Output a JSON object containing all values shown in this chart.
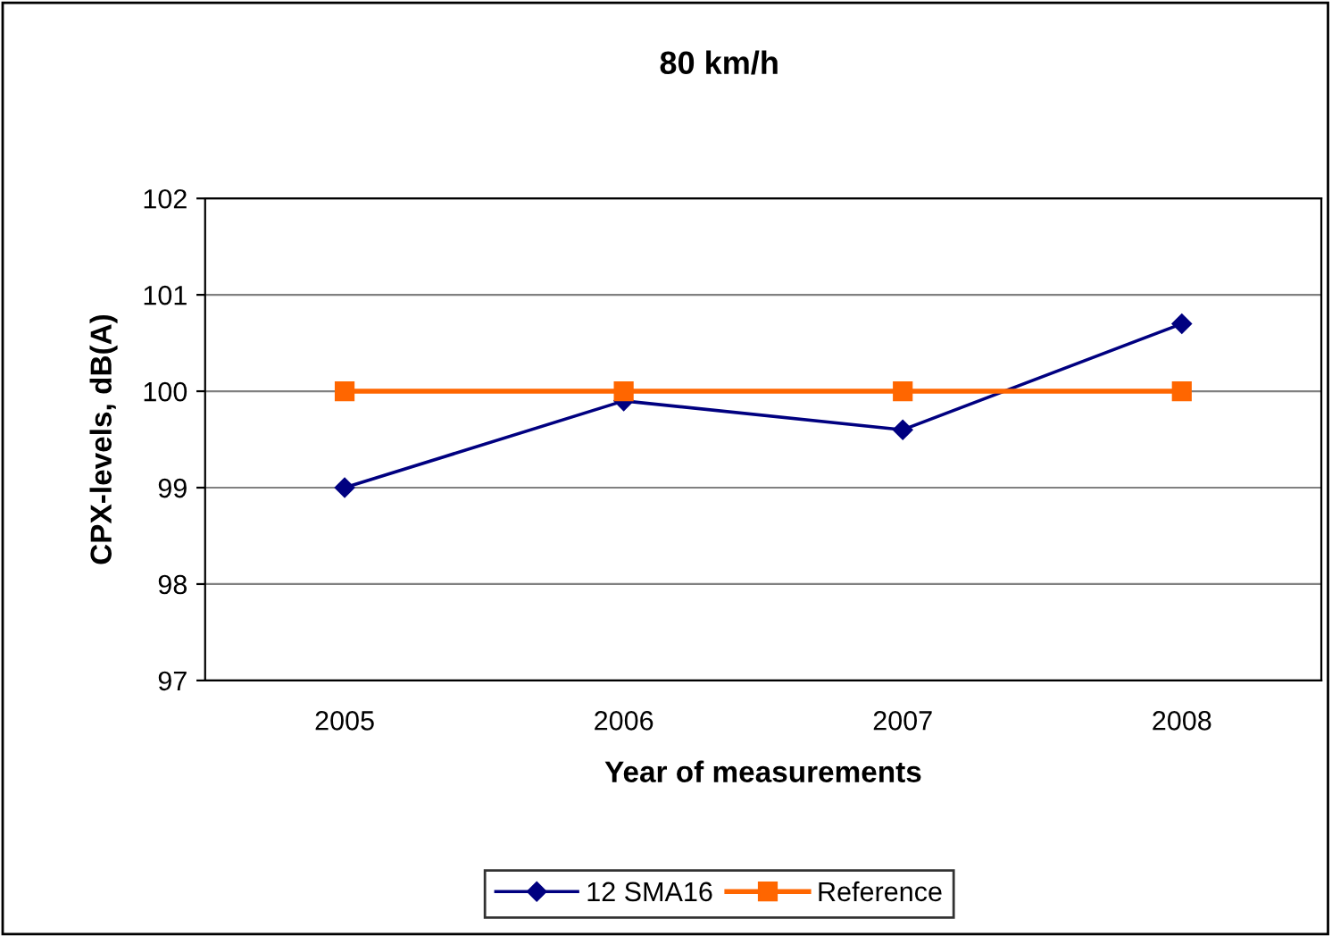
{
  "chart_data": {
    "type": "line",
    "title": "80 km/h",
    "xlabel": "Year of measurements",
    "ylabel": "CPX-levels, dB(A)",
    "categories": [
      "2005",
      "2006",
      "2007",
      "2008"
    ],
    "series": [
      {
        "name": "12 SMA16",
        "color": "#000080",
        "marker": "diamond",
        "values": [
          99.0,
          99.9,
          99.6,
          100.7
        ]
      },
      {
        "name": "Reference",
        "color": "#ff6600",
        "marker": "square",
        "values": [
          100,
          100,
          100,
          100
        ]
      }
    ],
    "ylim": [
      97,
      102
    ],
    "yticks": [
      97,
      98,
      99,
      100,
      101,
      102
    ],
    "grid": "y",
    "legend": "bottom",
    "line_style": "solid"
  }
}
